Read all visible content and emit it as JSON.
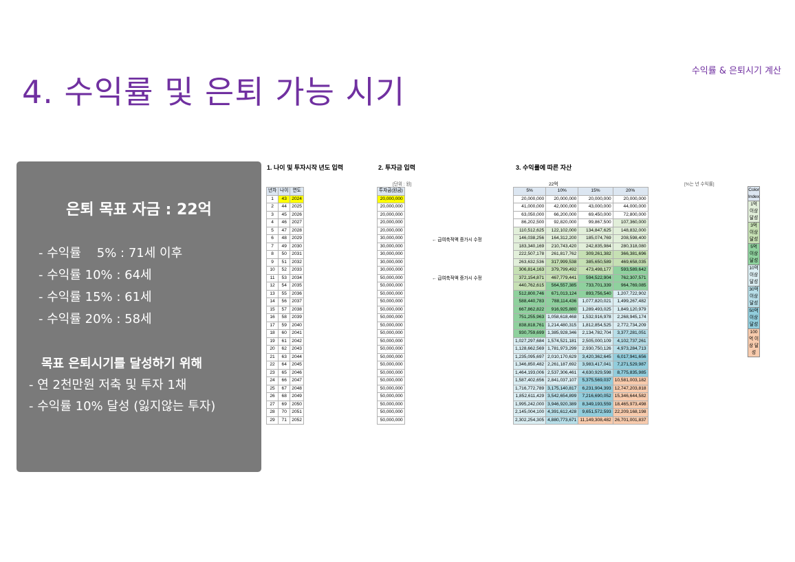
{
  "header": {
    "top_label": "수익률 & 은퇴시기 계산",
    "title": "4. 수익률 및 은퇴 가능 시기"
  },
  "panel": {
    "goal": "은퇴 목표 자금 : 22억",
    "rates": [
      "- 수익률    5% : 71세 이후",
      "- 수익률 10% : 64세",
      "- 수익률 15% : 61세",
      "- 수익률 20% : 58세"
    ],
    "plan_title": "목표 은퇴시기를 달성하기 위해",
    "plan": [
      "- 연 2천만원 저축 및 투자 1채",
      "- 수익률 10% 달성 (잃지않는 투자)"
    ]
  },
  "sheet": {
    "sec1": "1. 나이 및 투자시작 년도 입력",
    "sec2": "2. 투자금 입력",
    "sec3": "3. 수익률에 따른 자산",
    "unit_invest": "[단위 : 원]",
    "target": "22억",
    "unit_rate": "[%는 년 수익률]",
    "h1": [
      "년차",
      "나이",
      "연도"
    ],
    "h2": "투자금(원금)",
    "h3": [
      "5%",
      "10%",
      "15%",
      "20%"
    ],
    "note1": "← 급여축적액 증가시 수정",
    "note2": "← 급여축적액 증가시 수정",
    "legend_title": "Color Index",
    "legend": [
      "1억 이상 달성",
      "3억 이상 달성",
      "5억 이상 달성",
      "10억 이상 달성",
      "30억 이상 달성",
      "50억 이상 달성",
      "100억 이상 달성"
    ],
    "legend_colors": [
      "#e2efda",
      "#c6e0b4",
      "#8fd19e",
      "#dbeef3",
      "#b7dee8",
      "#92cddc",
      "#f8cbad"
    ],
    "rows": [
      [
        "1",
        "43",
        "2024",
        "20,000,000",
        "20,000,000",
        "20,000,000",
        "20,000,000",
        "20,000,000"
      ],
      [
        "2",
        "44",
        "2025",
        "20,000,000",
        "41,000,000",
        "42,000,000",
        "43,000,000",
        "44,000,000"
      ],
      [
        "3",
        "45",
        "2026",
        "20,000,000",
        "63,050,000",
        "66,200,000",
        "69,450,000",
        "72,800,000"
      ],
      [
        "4",
        "46",
        "2027",
        "20,000,000",
        "86,202,500",
        "92,820,000",
        "99,867,500",
        "107,360,000"
      ],
      [
        "5",
        "47",
        "2028",
        "20,000,000",
        "110,512,625",
        "122,102,000",
        "134,847,625",
        "148,832,000"
      ],
      [
        "6",
        "48",
        "2029",
        "30,000,000",
        "146,038,256",
        "164,312,200",
        "185,074,769",
        "208,598,400"
      ],
      [
        "7",
        "49",
        "2030",
        "30,000,000",
        "183,340,169",
        "210,743,420",
        "242,835,984",
        "280,318,080"
      ],
      [
        "8",
        "50",
        "2031",
        "30,000,000",
        "222,507,178",
        "261,817,762",
        "309,261,382",
        "366,381,696"
      ],
      [
        "9",
        "51",
        "2032",
        "30,000,000",
        "263,632,536",
        "317,999,538",
        "385,650,589",
        "469,658,035"
      ],
      [
        "10",
        "52",
        "2033",
        "30,000,000",
        "306,814,163",
        "379,799,492",
        "473,498,177",
        "593,589,642"
      ],
      [
        "11",
        "53",
        "2034",
        "50,000,000",
        "372,154,871",
        "467,779,441",
        "594,522,904",
        "762,307,571"
      ],
      [
        "12",
        "54",
        "2035",
        "50,000,000",
        "440,762,615",
        "564,557,385",
        "733,701,339",
        "964,769,085"
      ],
      [
        "13",
        "55",
        "2036",
        "50,000,000",
        "512,800,746",
        "671,013,124",
        "893,756,540",
        "1,207,722,902"
      ],
      [
        "14",
        "56",
        "2037",
        "50,000,000",
        "588,440,783",
        "788,114,436",
        "1,077,820,021",
        "1,499,267,482"
      ],
      [
        "15",
        "57",
        "2038",
        "50,000,000",
        "667,862,822",
        "916,925,880",
        "1,289,493,025",
        "1,849,120,979"
      ],
      [
        "16",
        "58",
        "2039",
        "50,000,000",
        "751,255,963",
        "1,058,618,468",
        "1,532,916,978",
        "2,268,945,174"
      ],
      [
        "17",
        "59",
        "2040",
        "50,000,000",
        "838,818,761",
        "1,214,480,315",
        "1,812,854,525",
        "2,772,734,209"
      ],
      [
        "18",
        "60",
        "2041",
        "50,000,000",
        "930,759,699",
        "1,385,928,346",
        "2,134,782,704",
        "3,377,281,051"
      ],
      [
        "19",
        "61",
        "2042",
        "50,000,000",
        "1,027,297,684",
        "1,574,521,181",
        "2,505,000,109",
        "4,102,737,261"
      ],
      [
        "20",
        "62",
        "2043",
        "50,000,000",
        "1,128,662,569",
        "1,781,973,299",
        "2,930,750,126",
        "4,973,284,713"
      ],
      [
        "21",
        "63",
        "2044",
        "50,000,000",
        "1,235,095,697",
        "2,010,170,629",
        "3,420,362,645",
        "6,017,941,656"
      ],
      [
        "22",
        "64",
        "2045",
        "50,000,000",
        "1,346,850,482",
        "2,261,187,692",
        "3,983,417,041",
        "7,271,529,987"
      ],
      [
        "23",
        "65",
        "2046",
        "50,000,000",
        "1,464,193,006",
        "2,537,306,461",
        "4,630,929,598",
        "8,775,835,985"
      ],
      [
        "24",
        "66",
        "2047",
        "50,000,000",
        "1,587,402,656",
        "2,841,037,107",
        "5,375,569,037",
        "10,581,003,182"
      ],
      [
        "25",
        "67",
        "2048",
        "50,000,000",
        "1,716,772,789",
        "3,175,140,817",
        "6,231,904,393",
        "12,747,203,818"
      ],
      [
        "26",
        "68",
        "2049",
        "50,000,000",
        "1,852,611,429",
        "3,542,654,899",
        "7,216,690,052",
        "15,346,644,582"
      ],
      [
        "27",
        "69",
        "2050",
        "50,000,000",
        "1,995,242,000",
        "3,946,920,389",
        "8,349,193,559",
        "18,465,973,498"
      ],
      [
        "28",
        "70",
        "2051",
        "50,000,000",
        "2,145,004,100",
        "4,391,612,428",
        "9,651,572,593",
        "22,209,168,198"
      ],
      [
        "29",
        "71",
        "2052",
        "50,000,000",
        "2,302,254,305",
        "4,880,773,671",
        "11,149,308,482",
        "26,701,001,837"
      ]
    ]
  }
}
